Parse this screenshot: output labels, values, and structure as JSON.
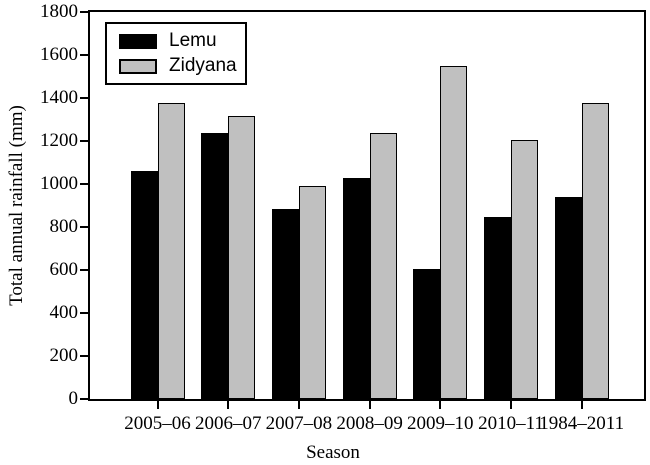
{
  "figure": {
    "background": "#ffffff",
    "frame_color": "#000000",
    "text_color": "#000000"
  },
  "chart_data": {
    "type": "bar",
    "title": "",
    "categories": [
      "2005–06",
      "2006–07",
      "2007–08",
      "2008–09",
      "2009–10",
      "2010–11",
      "1984–2011"
    ],
    "series": [
      {
        "name": "Lemu",
        "color": "#000000",
        "values": [
          1060,
          1235,
          885,
          1030,
          605,
          845,
          940
        ]
      },
      {
        "name": "Zidyana",
        "color": "#c0c0c0",
        "values": [
          1375,
          1315,
          990,
          1235,
          1550,
          1205,
          1375
        ]
      }
    ],
    "xlabel": "Season",
    "ylabel": "Total annual rainfall (mm)",
    "ylim": [
      0,
      1800
    ],
    "yticks": [
      0,
      200,
      400,
      600,
      800,
      1000,
      1200,
      1400,
      1600,
      1800
    ],
    "grid": false,
    "legend": {
      "position": "top-left",
      "entries": [
        "Lemu",
        "Zidyana"
      ]
    },
    "bar_outline_color": "#000000"
  }
}
